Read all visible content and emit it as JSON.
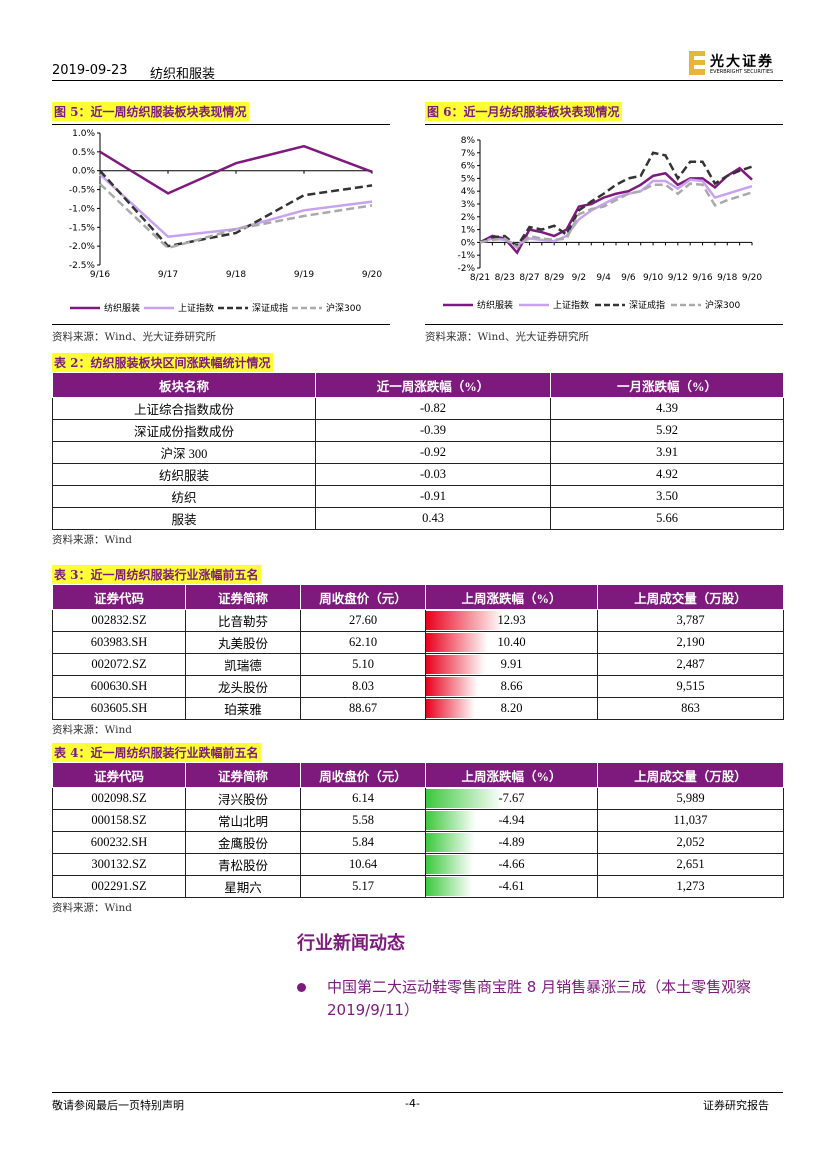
{
  "header": {
    "date": "2019-09-23",
    "industry": "纺织和服装",
    "logo": "光大证券",
    "logo_en": "EVERBRIGHT SECURITIES"
  },
  "chart_data": [
    {
      "type": "line",
      "title": "图 5：近一周纺织服装板块表现情况",
      "source": "资料来源：Wind、光大证券研究所",
      "categories": [
        "9/16",
        "9/17",
        "9/18",
        "9/19",
        "9/20"
      ],
      "ylim": [
        -2.5,
        1.0
      ],
      "yticks": [
        {
          "value": -2.5,
          "label": "-2.5%"
        },
        {
          "value": -2.0,
          "label": "-2.0%"
        },
        {
          "value": -1.5,
          "label": "-1.5%"
        },
        {
          "value": -1.0,
          "label": "-1.0%"
        },
        {
          "value": -0.5,
          "label": "-0.5%"
        },
        {
          "value": 0,
          "label": "0.0%"
        },
        {
          "value": 0.5,
          "label": "0.5%"
        },
        {
          "value": 1.0,
          "label": "1.0%"
        }
      ],
      "series": [
        {
          "name": "纺织服装",
          "color": "#7e1a7e",
          "style": "solid",
          "values": [
            0.5,
            -0.6,
            0.2,
            0.65,
            -0.03
          ]
        },
        {
          "name": "上证指数",
          "color": "#c8a2f0",
          "style": "solid",
          "values": [
            -0.1,
            -1.75,
            -1.55,
            -1.05,
            -0.82
          ]
        },
        {
          "name": "深证成指",
          "color": "#333333",
          "style": "dashed",
          "values": [
            0.0,
            -2.0,
            -1.65,
            -0.65,
            -0.39
          ]
        },
        {
          "name": "沪深300",
          "color": "#aaaaaa",
          "style": "dashed",
          "values": [
            -0.35,
            -2.05,
            -1.55,
            -1.2,
            -0.92
          ]
        }
      ]
    },
    {
      "type": "line",
      "title": "图 6：近一月纺织服装板块表现情况",
      "source": "资料来源：Wind、光大证券研究所",
      "categories": [
        "8/21",
        null,
        "8/23",
        null,
        "8/27",
        null,
        "8/29",
        null,
        "9/2",
        null,
        "9/4",
        null,
        "9/6",
        null,
        "9/10",
        null,
        "9/12",
        null,
        "9/16",
        null,
        "9/18",
        null,
        "9/20"
      ],
      "ylim": [
        -2,
        8
      ],
      "yticks": [
        {
          "value": -2,
          "label": "-2%"
        },
        {
          "value": -1,
          "label": "-1%"
        },
        {
          "value": 0,
          "label": "0%"
        },
        {
          "value": 1,
          "label": "1%"
        },
        {
          "value": 2,
          "label": "2%"
        },
        {
          "value": 3,
          "label": "3%"
        },
        {
          "value": 4,
          "label": "4%"
        },
        {
          "value": 5,
          "label": "5%"
        },
        {
          "value": 6,
          "label": "6%"
        },
        {
          "value": 7,
          "label": "7%"
        },
        {
          "value": 8,
          "label": "8%"
        }
      ],
      "series": [
        {
          "name": "纺织服装",
          "color": "#7e1a7e",
          "style": "solid",
          "values": [
            0,
            0.5,
            0.3,
            -0.8,
            1.0,
            0.8,
            0.5,
            1.0,
            2.8,
            3.0,
            3.5,
            3.8,
            4.0,
            4.5,
            5.2,
            5.4,
            4.5,
            5.0,
            5.0,
            4.3,
            5.2,
            5.8,
            4.9
          ]
        },
        {
          "name": "上证指数",
          "color": "#c8a2f0",
          "style": "solid",
          "values": [
            0,
            0.3,
            0.2,
            -0.2,
            0.3,
            0.2,
            0.1,
            0.5,
            1.8,
            2.5,
            3.0,
            3.5,
            3.8,
            4.0,
            4.8,
            4.8,
            4.2,
            4.9,
            4.8,
            3.5,
            3.8,
            4.1,
            4.39
          ]
        },
        {
          "name": "深证成指",
          "color": "#333333",
          "style": "dashed",
          "values": [
            0,
            0.4,
            0.5,
            -0.3,
            1.2,
            1.0,
            1.3,
            0.6,
            2.5,
            3.2,
            3.8,
            4.5,
            5.0,
            5.2,
            7.0,
            6.8,
            5.0,
            6.3,
            6.3,
            4.6,
            5.2,
            5.6,
            5.92
          ]
        },
        {
          "name": "沪深300",
          "color": "#aaaaaa",
          "style": "dashed",
          "values": [
            0,
            0.2,
            0.3,
            -0.4,
            0.5,
            0.3,
            0.2,
            0.3,
            2.2,
            2.6,
            2.8,
            3.3,
            3.8,
            4.0,
            4.5,
            4.5,
            3.8,
            4.6,
            4.5,
            2.9,
            3.3,
            3.6,
            3.91
          ]
        }
      ]
    }
  ],
  "tables": [
    {
      "title": "表 2：纺织服装板块区间涨跌幅统计情况",
      "source": "资料来源：Wind",
      "headers": [
        "板块名称",
        "近一周涨跌幅（%）",
        "一月涨跌幅（%）"
      ],
      "rows": [
        [
          "上证综合指数成份",
          "-0.82",
          "4.39"
        ],
        [
          "深证成份指数成份",
          "-0.39",
          "5.92"
        ],
        [
          "沪深 300",
          "-0.92",
          "3.91"
        ],
        [
          "纺织服装",
          "-0.03",
          "4.92"
        ],
        [
          "纺织",
          "-0.91",
          "3.50"
        ],
        [
          "服装",
          "0.43",
          "5.66"
        ]
      ]
    },
    {
      "title": "表 3：近一周纺织服装行业涨幅前五名",
      "source": "资料来源：Wind",
      "bar_column": 3,
      "bar_color": "#e8001c",
      "headers": [
        "证券代码",
        "证券简称",
        "周收盘价（元）",
        "上周涨跌幅（%）",
        "上周成交量（万股）"
      ],
      "rows": [
        [
          "002832.SZ",
          "比音勒芬",
          "27.60",
          "12.93",
          "3,787"
        ],
        [
          "603983.SH",
          "丸美股份",
          "62.10",
          "10.40",
          "2,190"
        ],
        [
          "002072.SZ",
          "凯瑞德",
          "5.10",
          "9.91",
          "2,487"
        ],
        [
          "600630.SH",
          "龙头股份",
          "8.03",
          "8.66",
          "9,515"
        ],
        [
          "603605.SH",
          "珀莱雅",
          "88.67",
          "8.20",
          "863"
        ]
      ]
    },
    {
      "title": "表 4：近一周纺织服装行业跌幅前五名",
      "source": "资料来源：Wind",
      "bar_column": 3,
      "bar_color": "#3cc83c",
      "headers": [
        "证券代码",
        "证券简称",
        "周收盘价（元）",
        "上周涨跌幅（%）",
        "上周成交量（万股）"
      ],
      "rows": [
        [
          "002098.SZ",
          "浔兴股份",
          "6.14",
          "-7.67",
          "5,989"
        ],
        [
          "000158.SZ",
          "常山北明",
          "5.58",
          "-4.94",
          "11,037"
        ],
        [
          "600232.SH",
          "金鹰股份",
          "5.84",
          "-4.89",
          "2,052"
        ],
        [
          "300132.SZ",
          "青松股份",
          "10.64",
          "-4.66",
          "2,651"
        ],
        [
          "002291.SZ",
          "星期六",
          "5.17",
          "-4.61",
          "1,273"
        ]
      ]
    }
  ],
  "news": {
    "title": "行业新闻动态",
    "items": [
      "中国第二大运动鞋零售商宝胜 8 月销售暴涨三成（本土零售观察 2019/9/11）"
    ]
  },
  "footer": {
    "left": "敬请参阅最后一页特别声明",
    "page": "-4-",
    "right": "证券研究报告"
  }
}
